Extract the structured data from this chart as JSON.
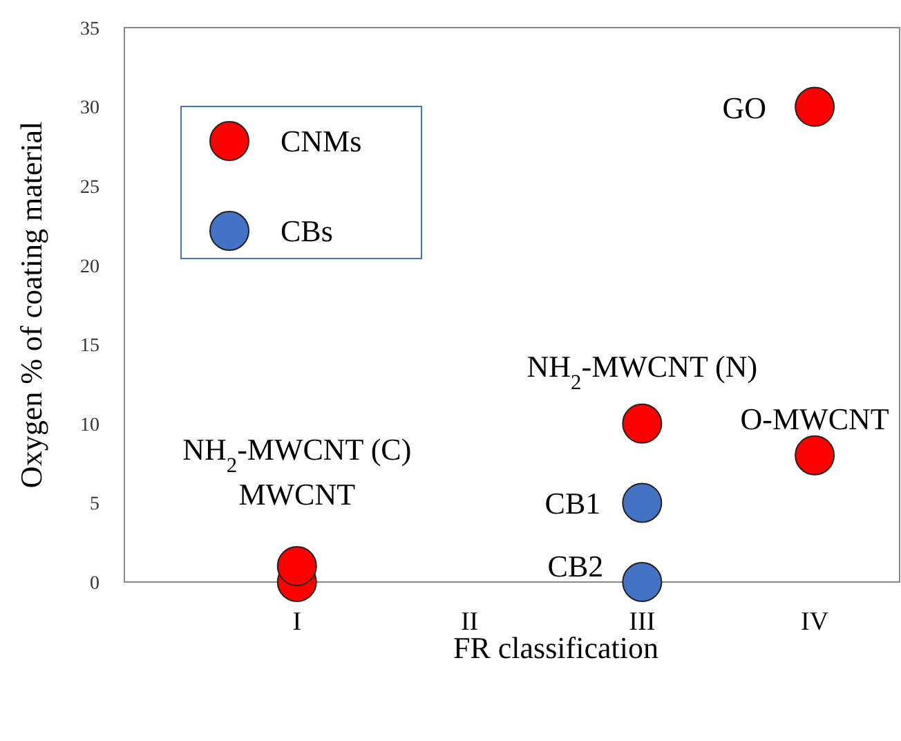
{
  "chart_data": {
    "type": "scatter",
    "xlabel": "FR classification",
    "ylabel": "Oxygen % of coating material",
    "categories": [
      "I",
      "II",
      "III",
      "IV"
    ],
    "ylim": [
      0,
      35
    ],
    "yticks": [
      0,
      5,
      10,
      15,
      20,
      25,
      30,
      35
    ],
    "grid": false,
    "legend": "top left",
    "marker": "circle",
    "series": [
      {
        "name": "CNMs",
        "color": "#ff0000",
        "x": [
          "I",
          "I",
          "III",
          "IV",
          "IV"
        ],
        "values": [
          0,
          1,
          10,
          30,
          8
        ]
      },
      {
        "name": "CBs",
        "color": "#4472c4",
        "x": [
          "III",
          "III"
        ],
        "values": [
          5,
          0
        ]
      }
    ],
    "annotations": [
      {
        "text": "MWCNT",
        "x": "I",
        "y": 0
      },
      {
        "text": "NH$_{2}$-MWCNT (C)",
        "x": "I",
        "y": 1
      },
      {
        "text": "NH$_{2}$-MWCNT (N)",
        "x": "III",
        "y": 10
      },
      {
        "text": "GO",
        "x": "IV",
        "y": 30
      },
      {
        "text": "O-MWCNT",
        "x": "IV",
        "y": 8
      },
      {
        "text": "CB1",
        "x": "III",
        "y": 5
      },
      {
        "text": "CB2",
        "x": "III",
        "y": 0
      }
    ]
  }
}
